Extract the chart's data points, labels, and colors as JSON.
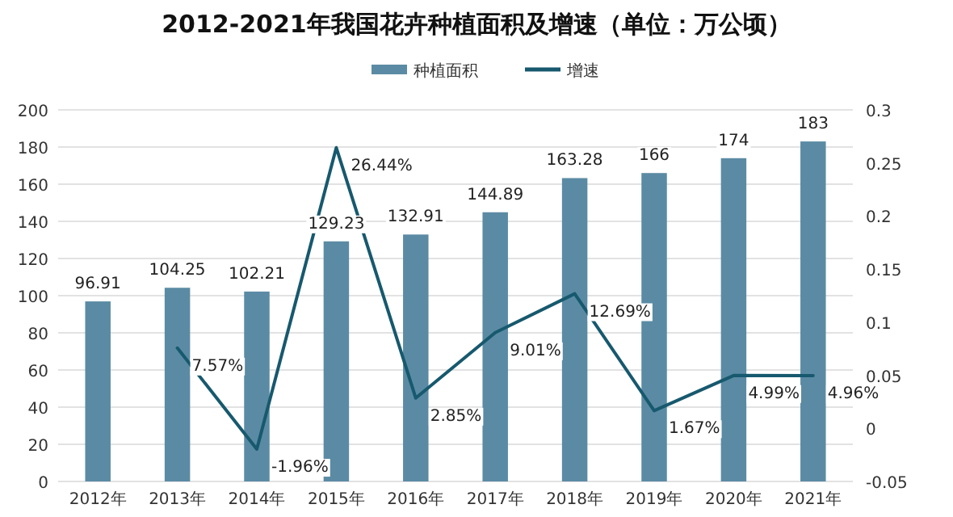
{
  "chart_data": {
    "type": "bar",
    "title": "2012-2021年我国花卉种植面积及增速（单位：万公顷）",
    "categories": [
      "2012年",
      "2013年",
      "2014年",
      "2015年",
      "2016年",
      "2017年",
      "2018年",
      "2019年",
      "2020年",
      "2021年"
    ],
    "series": [
      {
        "name": "种植面积",
        "color": "#5b8ba4",
        "values": [
          96.91,
          104.25,
          102.21,
          129.23,
          132.91,
          144.89,
          163.28,
          166,
          174,
          183
        ],
        "value_labels": [
          "96.91",
          "104.25",
          "102.21",
          "129.23",
          "132.91",
          "144.89",
          "163.28",
          "166",
          "174",
          "183"
        ]
      },
      {
        "name": "增速",
        "type": "line",
        "axis": "y2",
        "color": "#17596e",
        "values": [
          null,
          0.0757,
          -0.0196,
          0.2644,
          0.0285,
          0.0901,
          0.1269,
          0.0167,
          0.0499,
          0.0496
        ],
        "value_labels": [
          null,
          "7.57%",
          "-1.96%",
          "26.44%",
          "2.85%",
          "9.01%",
          "12.69%",
          "1.67%",
          "4.99%",
          "4.96%"
        ]
      }
    ],
    "ylim": [
      0,
      200
    ],
    "yticks": [
      0,
      20,
      40,
      60,
      80,
      100,
      120,
      140,
      160,
      180,
      200
    ],
    "y2lim": [
      -0.05,
      0.3
    ],
    "y2ticks": [
      -0.05,
      0,
      0.05,
      0.1,
      0.15,
      0.2,
      0.25,
      0.3
    ],
    "grid": "y",
    "legend": "top"
  }
}
